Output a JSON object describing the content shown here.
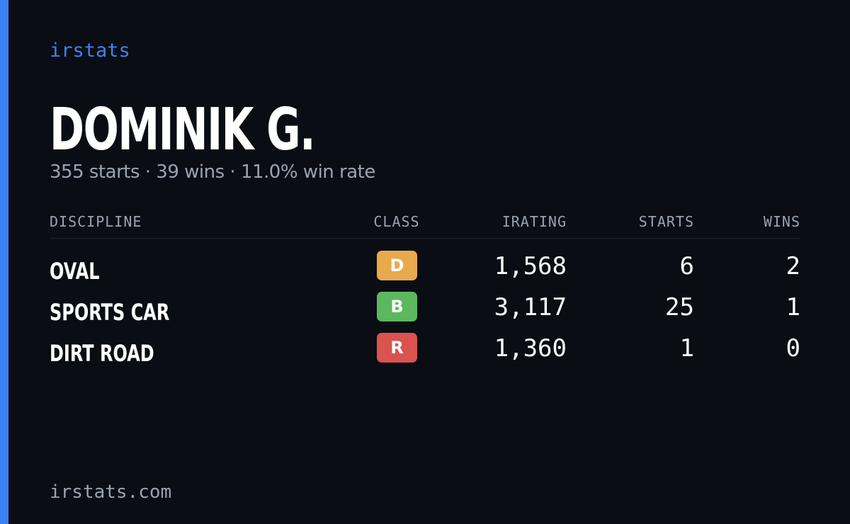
{
  "brand": "irstats",
  "profile": {
    "name": "DOMINIK G.",
    "summary": "355 starts · 39 wins · 11.0% win rate"
  },
  "table": {
    "headers": [
      "DISCIPLINE",
      "CLASS",
      "IRATING",
      "STARTS",
      "WINS"
    ],
    "rows": [
      {
        "discipline": "OVAL",
        "class": "D",
        "class_color": "#e9a94d",
        "irating": "1,568",
        "starts": "6",
        "wins": "2"
      },
      {
        "discipline": "SPORTS CAR",
        "class": "B",
        "class_color": "#5cb85c",
        "irating": "3,117",
        "starts": "25",
        "wins": "1"
      },
      {
        "discipline": "DIRT ROAD",
        "class": "R",
        "class_color": "#d9534f",
        "irating": "1,360",
        "starts": "1",
        "wins": "0"
      }
    ]
  },
  "footer": {
    "site": "irstats.com"
  }
}
